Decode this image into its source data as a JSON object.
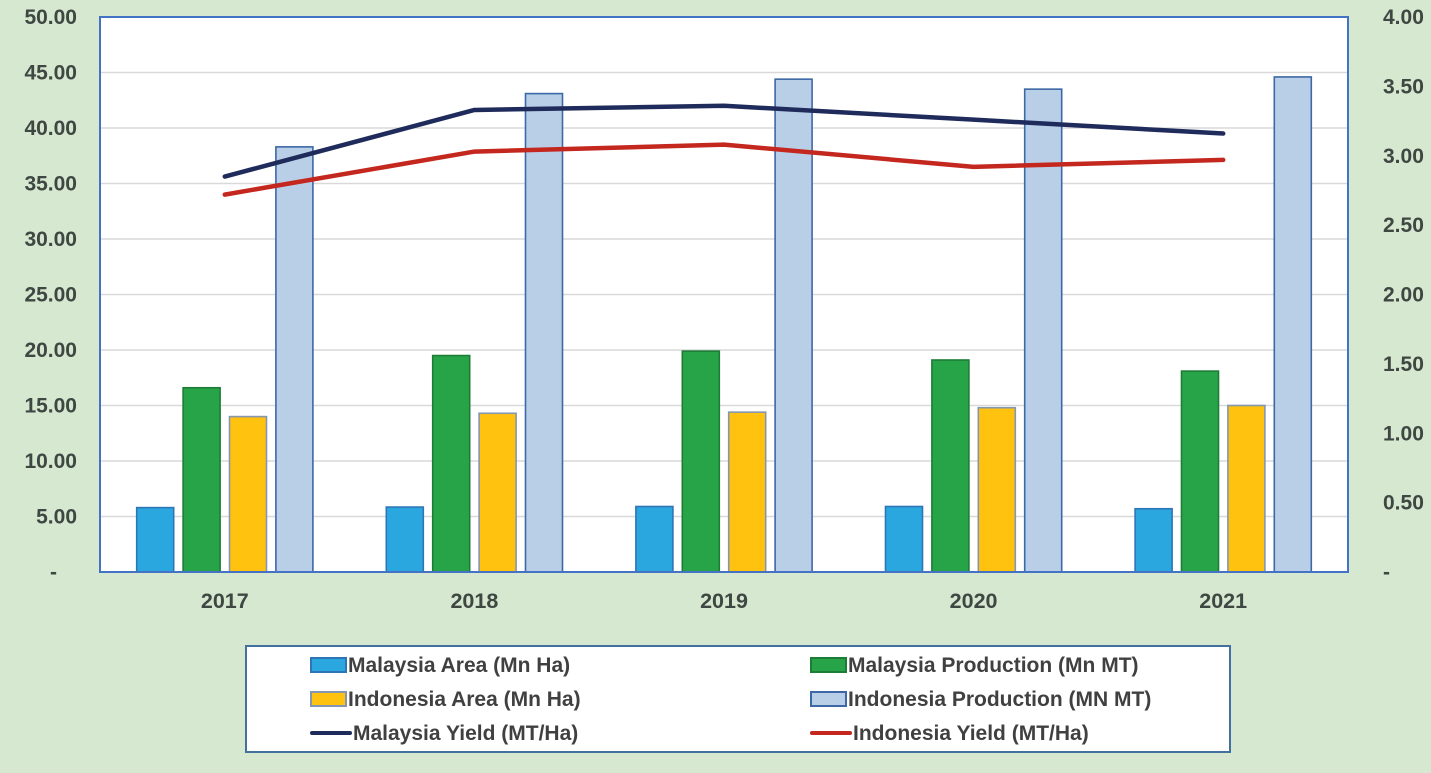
{
  "colors": {
    "page_background": "#D6E8D0",
    "plot_background": "#FFFFFF",
    "plot_border": "#4472C4",
    "gridline": "#D9D9D9",
    "axis_text": "#3F4743",
    "legend_border": "#41719C",
    "legend_text": "#404040"
  },
  "chart_data": {
    "type": "bar",
    "subtype": "combo-bar-line-dual-axis",
    "title": "",
    "categories": [
      "2017",
      "2018",
      "2019",
      "2020",
      "2021"
    ],
    "bar_series": [
      {
        "name": "Malaysia Area (Mn Ha)",
        "axis": "left",
        "color": "#2BA7DF",
        "border": "#2E75B6",
        "values": [
          5.8,
          5.85,
          5.9,
          5.9,
          5.7
        ]
      },
      {
        "name": "Malaysia Production (Mn MT)",
        "axis": "left",
        "color": "#27A348",
        "border": "#1D7D37",
        "values": [
          16.6,
          19.5,
          19.9,
          19.1,
          18.1
        ]
      },
      {
        "name": "Indonesia Area (Mn Ha)",
        "axis": "left",
        "color": "#FFC20E",
        "border": "#8496B0",
        "values": [
          14.0,
          14.3,
          14.4,
          14.8,
          15.0
        ]
      },
      {
        "name": "Indonesia Production (MN MT)",
        "axis": "left",
        "color": "#B9CFE8",
        "border": "#3C68A5",
        "values": [
          38.3,
          43.1,
          44.4,
          43.5,
          44.6
        ]
      }
    ],
    "line_series": [
      {
        "name": "Malaysia Yield (MT/Ha)",
        "axis": "right",
        "color": "#1F2B5B",
        "values": [
          2.85,
          3.33,
          3.36,
          3.26,
          3.16
        ]
      },
      {
        "name": "Indonesia Yield (MT/Ha)",
        "axis": "right",
        "color": "#C3271E",
        "values": [
          2.72,
          3.03,
          3.08,
          2.92,
          2.97
        ]
      }
    ],
    "left_axis": {
      "min": 0,
      "max": 50,
      "step": 5,
      "labels": [
        "-",
        "5.00",
        "10.00",
        "15.00",
        "20.00",
        "25.00",
        "30.00",
        "35.00",
        "40.00",
        "45.00",
        "50.00"
      ]
    },
    "right_axis": {
      "min": 0,
      "max": 4,
      "step": 0.5,
      "labels": [
        "-",
        "0.50",
        "1.00",
        "1.50",
        "2.00",
        "2.50",
        "3.00",
        "3.50",
        "4.00"
      ]
    },
    "grid": true,
    "legend_position": "bottom"
  }
}
